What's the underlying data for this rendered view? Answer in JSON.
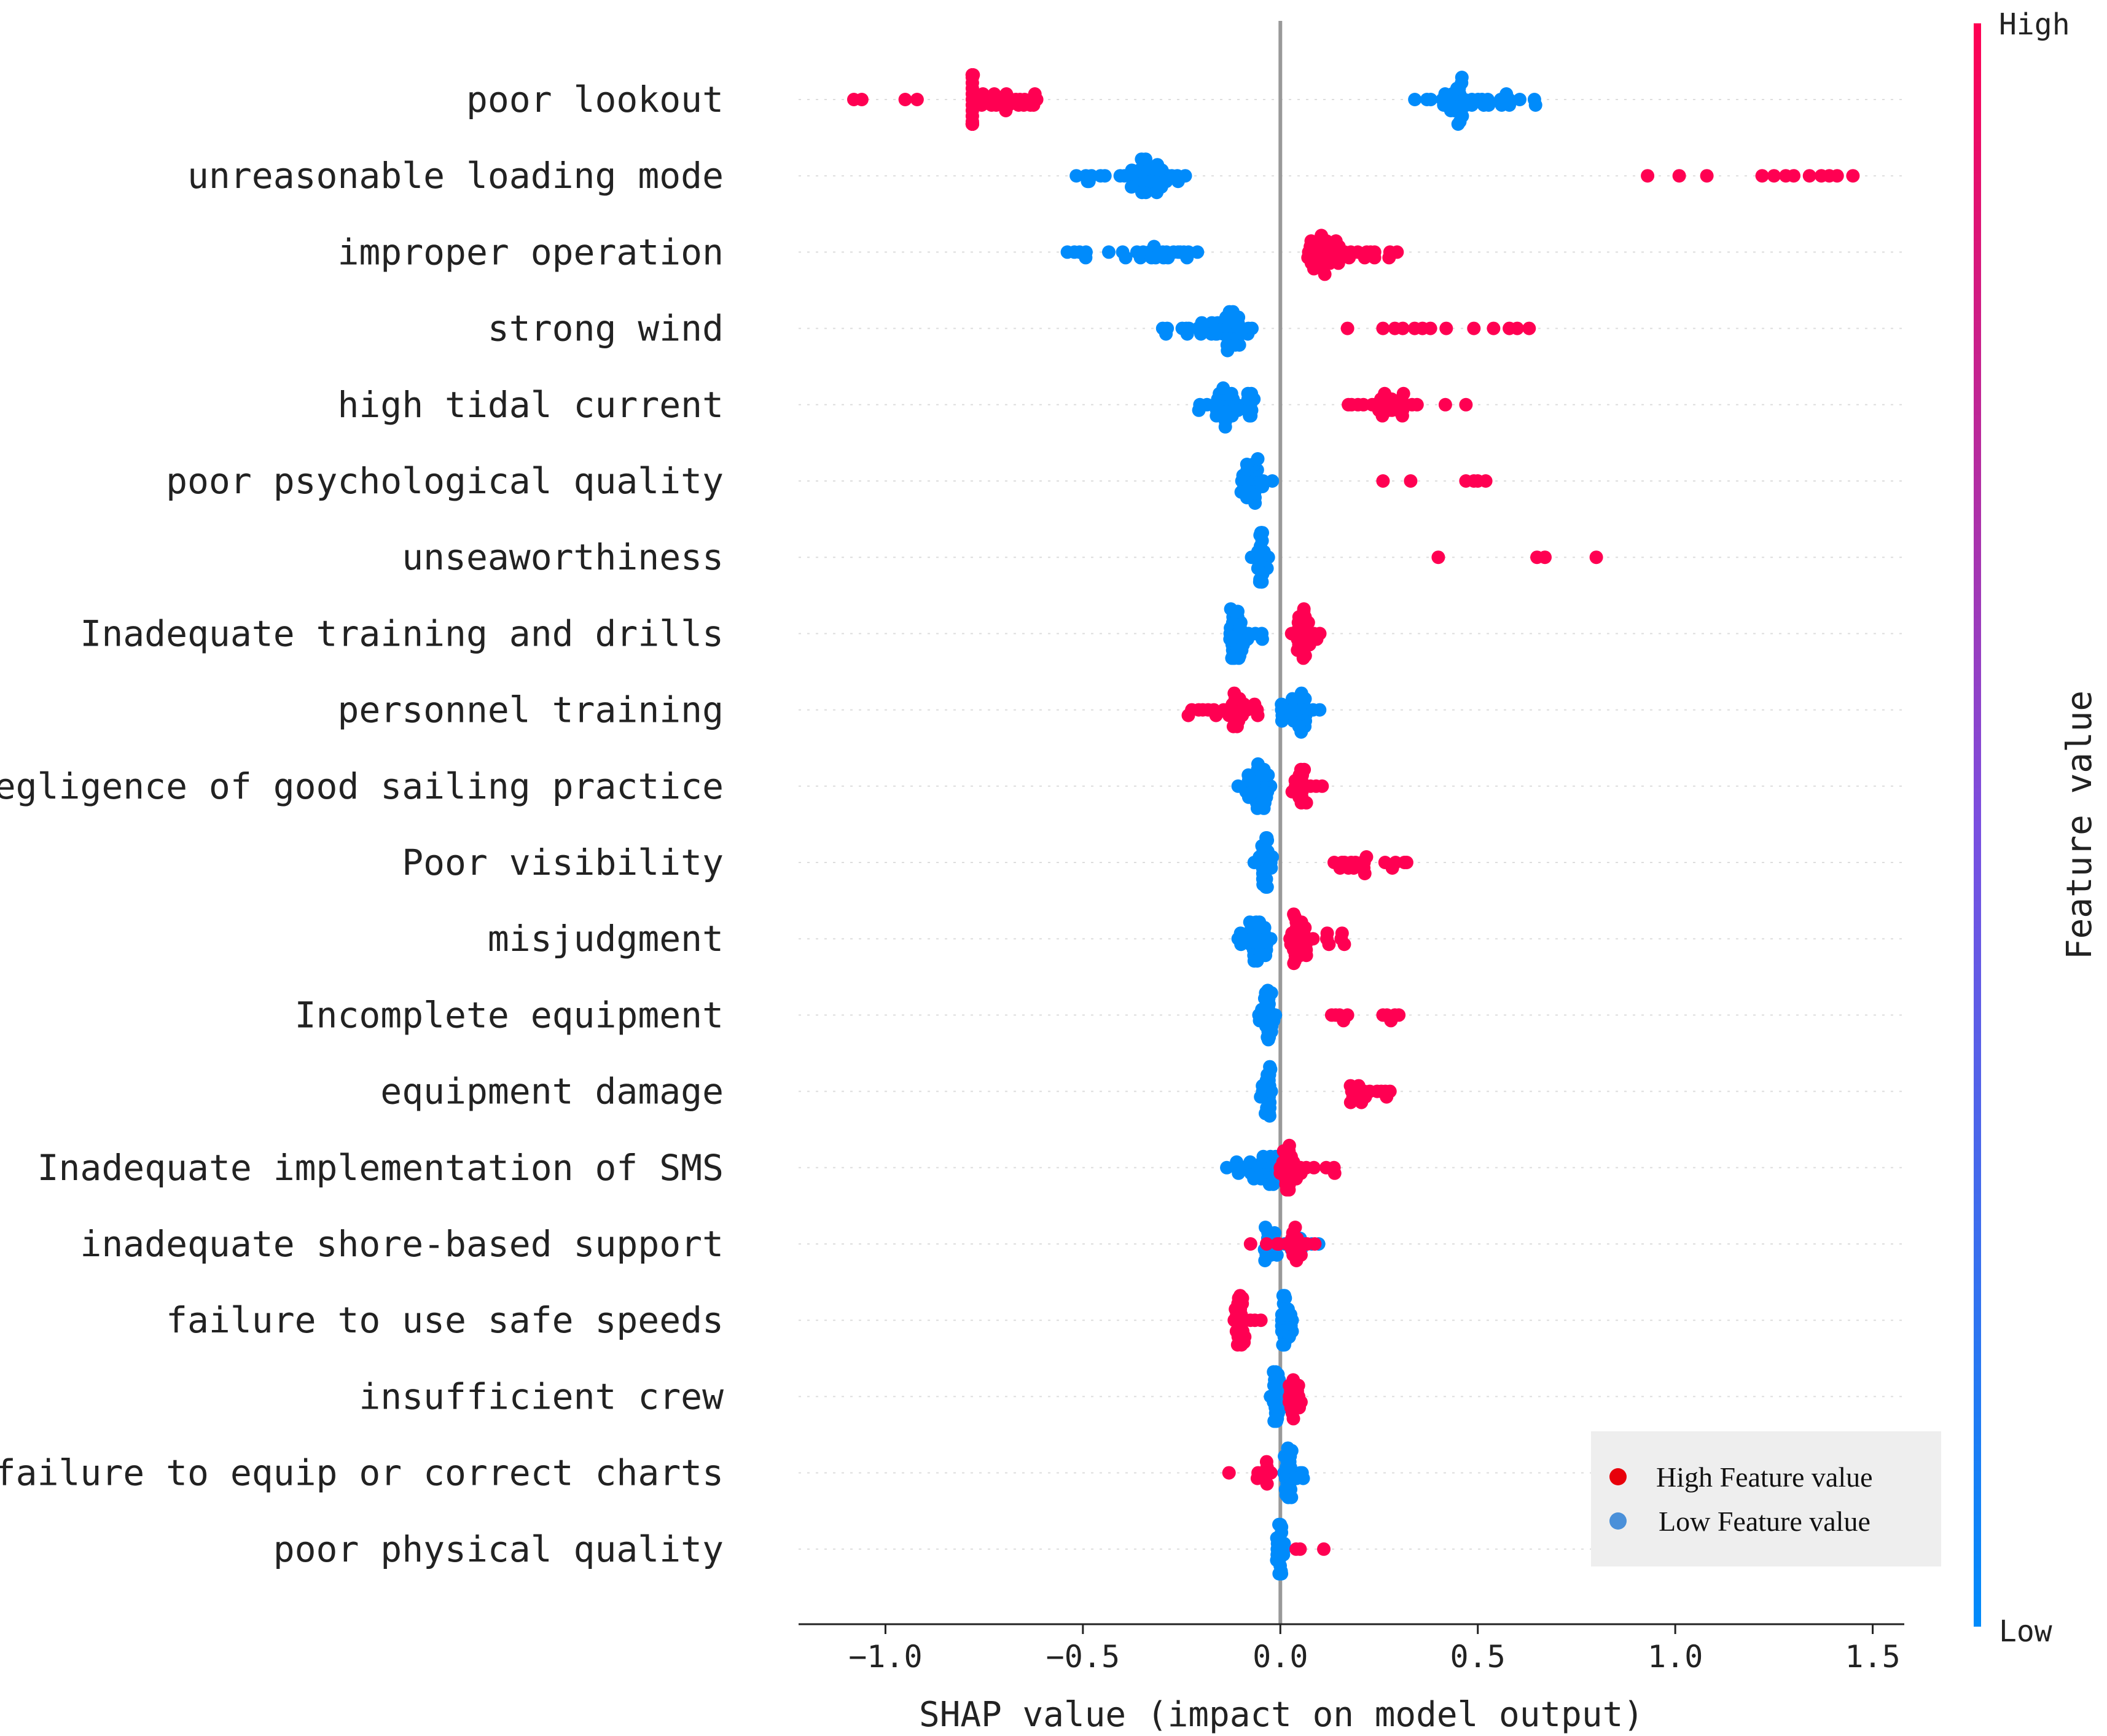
{
  "chart_data": {
    "type": "scatter",
    "subtype": "shap-beeswarm",
    "title": "",
    "xlabel": "SHAP value (impact on model output)",
    "xlim": [
      -1.22,
      1.58
    ],
    "xticks": [
      -1.0,
      -0.5,
      0.0,
      0.5,
      1.0,
      1.5
    ],
    "xtick_labels": [
      "−1.0",
      "−0.5",
      "0.0",
      "0.5",
      "1.0",
      "1.5"
    ],
    "colorbar": {
      "label": "Feature value",
      "high": "High",
      "low": "Low",
      "high_color": "#ff0052",
      "low_color": "#008bfb"
    },
    "legend": {
      "placement": "bottom-right",
      "items": [
        {
          "label": "High Feature value",
          "color": "#e8000b"
        },
        {
          "label": "Low Feature value",
          "color": "#4a90d9"
        }
      ]
    },
    "features": [
      {
        "name": "poor lookout",
        "low": {
          "range": [
            0.32,
            0.67
          ],
          "count": 44,
          "peak": 0.45
        },
        "high": {
          "range": [
            -0.78,
            -0.61
          ],
          "count": 60,
          "peak": -0.86,
          "extra": [
            -1.08,
            -1.06,
            -0.95,
            -0.92
          ]
        }
      },
      {
        "name": "unreasonable loading mode",
        "low": {
          "range": [
            -0.52,
            -0.24
          ],
          "count": 48,
          "peak": -0.33
        },
        "high": {
          "points": [
            0.93,
            1.01,
            1.08,
            1.22,
            1.25,
            1.28,
            1.3,
            1.34,
            1.37,
            1.39,
            1.41,
            1.45
          ]
        }
      },
      {
        "name": "improper operation",
        "low": {
          "range": [
            -0.56,
            -0.21
          ],
          "count": 28,
          "peak": -0.28
        },
        "high": {
          "range": [
            0.07,
            0.3
          ],
          "count": 44,
          "peak": 0.11
        }
      },
      {
        "name": "strong wind",
        "low": {
          "range": [
            -0.3,
            -0.05
          ],
          "count": 48,
          "peak": -0.12
        },
        "high": {
          "points": [
            0.17,
            0.26,
            0.29,
            0.31,
            0.34,
            0.36,
            0.38,
            0.42,
            0.49,
            0.54,
            0.58,
            0.6,
            0.63
          ]
        }
      },
      {
        "name": "high tidal current",
        "low": {
          "range": [
            -0.22,
            -0.06
          ],
          "count": 40,
          "peak": -0.14
        },
        "high": {
          "range": [
            0.15,
            0.42
          ],
          "count": 30,
          "peak": 0.28,
          "extra": [
            0.47
          ]
        }
      },
      {
        "name": "poor psychological quality",
        "low": {
          "range": [
            -0.1,
            -0.02
          ],
          "count": 30,
          "peak": -0.07
        },
        "high": {
          "points": [
            0.26,
            0.33,
            0.47,
            0.49,
            0.5,
            0.52
          ]
        }
      },
      {
        "name": "unseaworthiness",
        "low": {
          "range": [
            -0.08,
            -0.03
          ],
          "count": 26,
          "peak": -0.05
        },
        "high": {
          "points": [
            0.4,
            0.65,
            0.67,
            0.8
          ]
        }
      },
      {
        "name": "Inadequate training and drills",
        "low": {
          "range": [
            -0.13,
            -0.04
          ],
          "count": 36,
          "peak": -0.11
        },
        "high": {
          "range": [
            0.02,
            0.11
          ],
          "count": 28,
          "peak": 0.06
        }
      },
      {
        "name": "personnel training",
        "low": {
          "range": [
            0.0,
            0.1
          ],
          "count": 30,
          "peak": 0.04
        },
        "high": {
          "range": [
            -0.24,
            -0.05
          ],
          "count": 30,
          "peak": -0.11
        }
      },
      {
        "name": "negligence of good sailing practice",
        "low": {
          "range": [
            -0.12,
            -0.02
          ],
          "count": 32,
          "peak": -0.05
        },
        "high": {
          "range": [
            0.03,
            0.14
          ],
          "count": 20,
          "peak": 0.05
        }
      },
      {
        "name": "Poor visibility",
        "low": {
          "range": [
            -0.07,
            -0.02
          ],
          "count": 26,
          "peak": -0.04
        },
        "high": {
          "range": [
            0.12,
            0.32
          ],
          "count": 18,
          "peak": 0.2
        }
      },
      {
        "name": "misjudgment",
        "low": {
          "range": [
            -0.12,
            -0.02
          ],
          "count": 34,
          "peak": -0.05
        },
        "high": {
          "range": [
            0.01,
            0.18
          ],
          "count": 34,
          "peak": 0.04
        }
      },
      {
        "name": "Incomplete equipment",
        "low": {
          "range": [
            -0.06,
            -0.01
          ],
          "count": 26,
          "peak": -0.03
        },
        "high": {
          "points": [
            0.13,
            0.14,
            0.15,
            0.16,
            0.17,
            0.26,
            0.27,
            0.28,
            0.29,
            0.3
          ]
        }
      },
      {
        "name": "equipment damage",
        "low": {
          "range": [
            -0.05,
            -0.02
          ],
          "count": 22,
          "peak": -0.03
        },
        "high": {
          "range": [
            0.16,
            0.29
          ],
          "count": 16,
          "peak": 0.2
        }
      },
      {
        "name": "Inadequate implementation of SMS",
        "low": {
          "range": [
            -0.14,
            0.0
          ],
          "count": 34,
          "peak": -0.02
        },
        "high": {
          "range": [
            0.0,
            0.15
          ],
          "count": 30,
          "peak": 0.02
        }
      },
      {
        "name": "inadequate shore-based support",
        "low": {
          "range": [
            -0.04,
            0.11
          ],
          "count": 28,
          "peak": -0.02
        },
        "high": {
          "range": [
            -0.09,
            0.09
          ],
          "count": 22,
          "peak": 0.04
        }
      },
      {
        "name": "failure to use safe speeds",
        "low": {
          "range": [
            0.0,
            0.03
          ],
          "count": 24,
          "peak": 0.01
        },
        "high": {
          "range": [
            -0.12,
            -0.04
          ],
          "count": 26,
          "peak": -0.1
        }
      },
      {
        "name": "insufficient crew",
        "low": {
          "range": [
            -0.03,
            0.01
          ],
          "count": 26,
          "peak": -0.01
        },
        "high": {
          "range": [
            0.02,
            0.09
          ],
          "count": 18,
          "peak": 0.03
        }
      },
      {
        "name": "failure to equip or correct charts",
        "low": {
          "range": [
            0.0,
            0.06
          ],
          "count": 26,
          "peak": 0.02
        },
        "high": {
          "range": [
            -0.06,
            -0.02
          ],
          "count": 8,
          "peak": -0.04,
          "extra": [
            -0.13
          ]
        }
      },
      {
        "name": "poor physical quality",
        "low": {
          "range": [
            -0.01,
            0.01
          ],
          "count": 22,
          "peak": 0.0
        },
        "high": {
          "points": [
            0.04,
            0.05,
            0.11
          ]
        }
      }
    ]
  }
}
